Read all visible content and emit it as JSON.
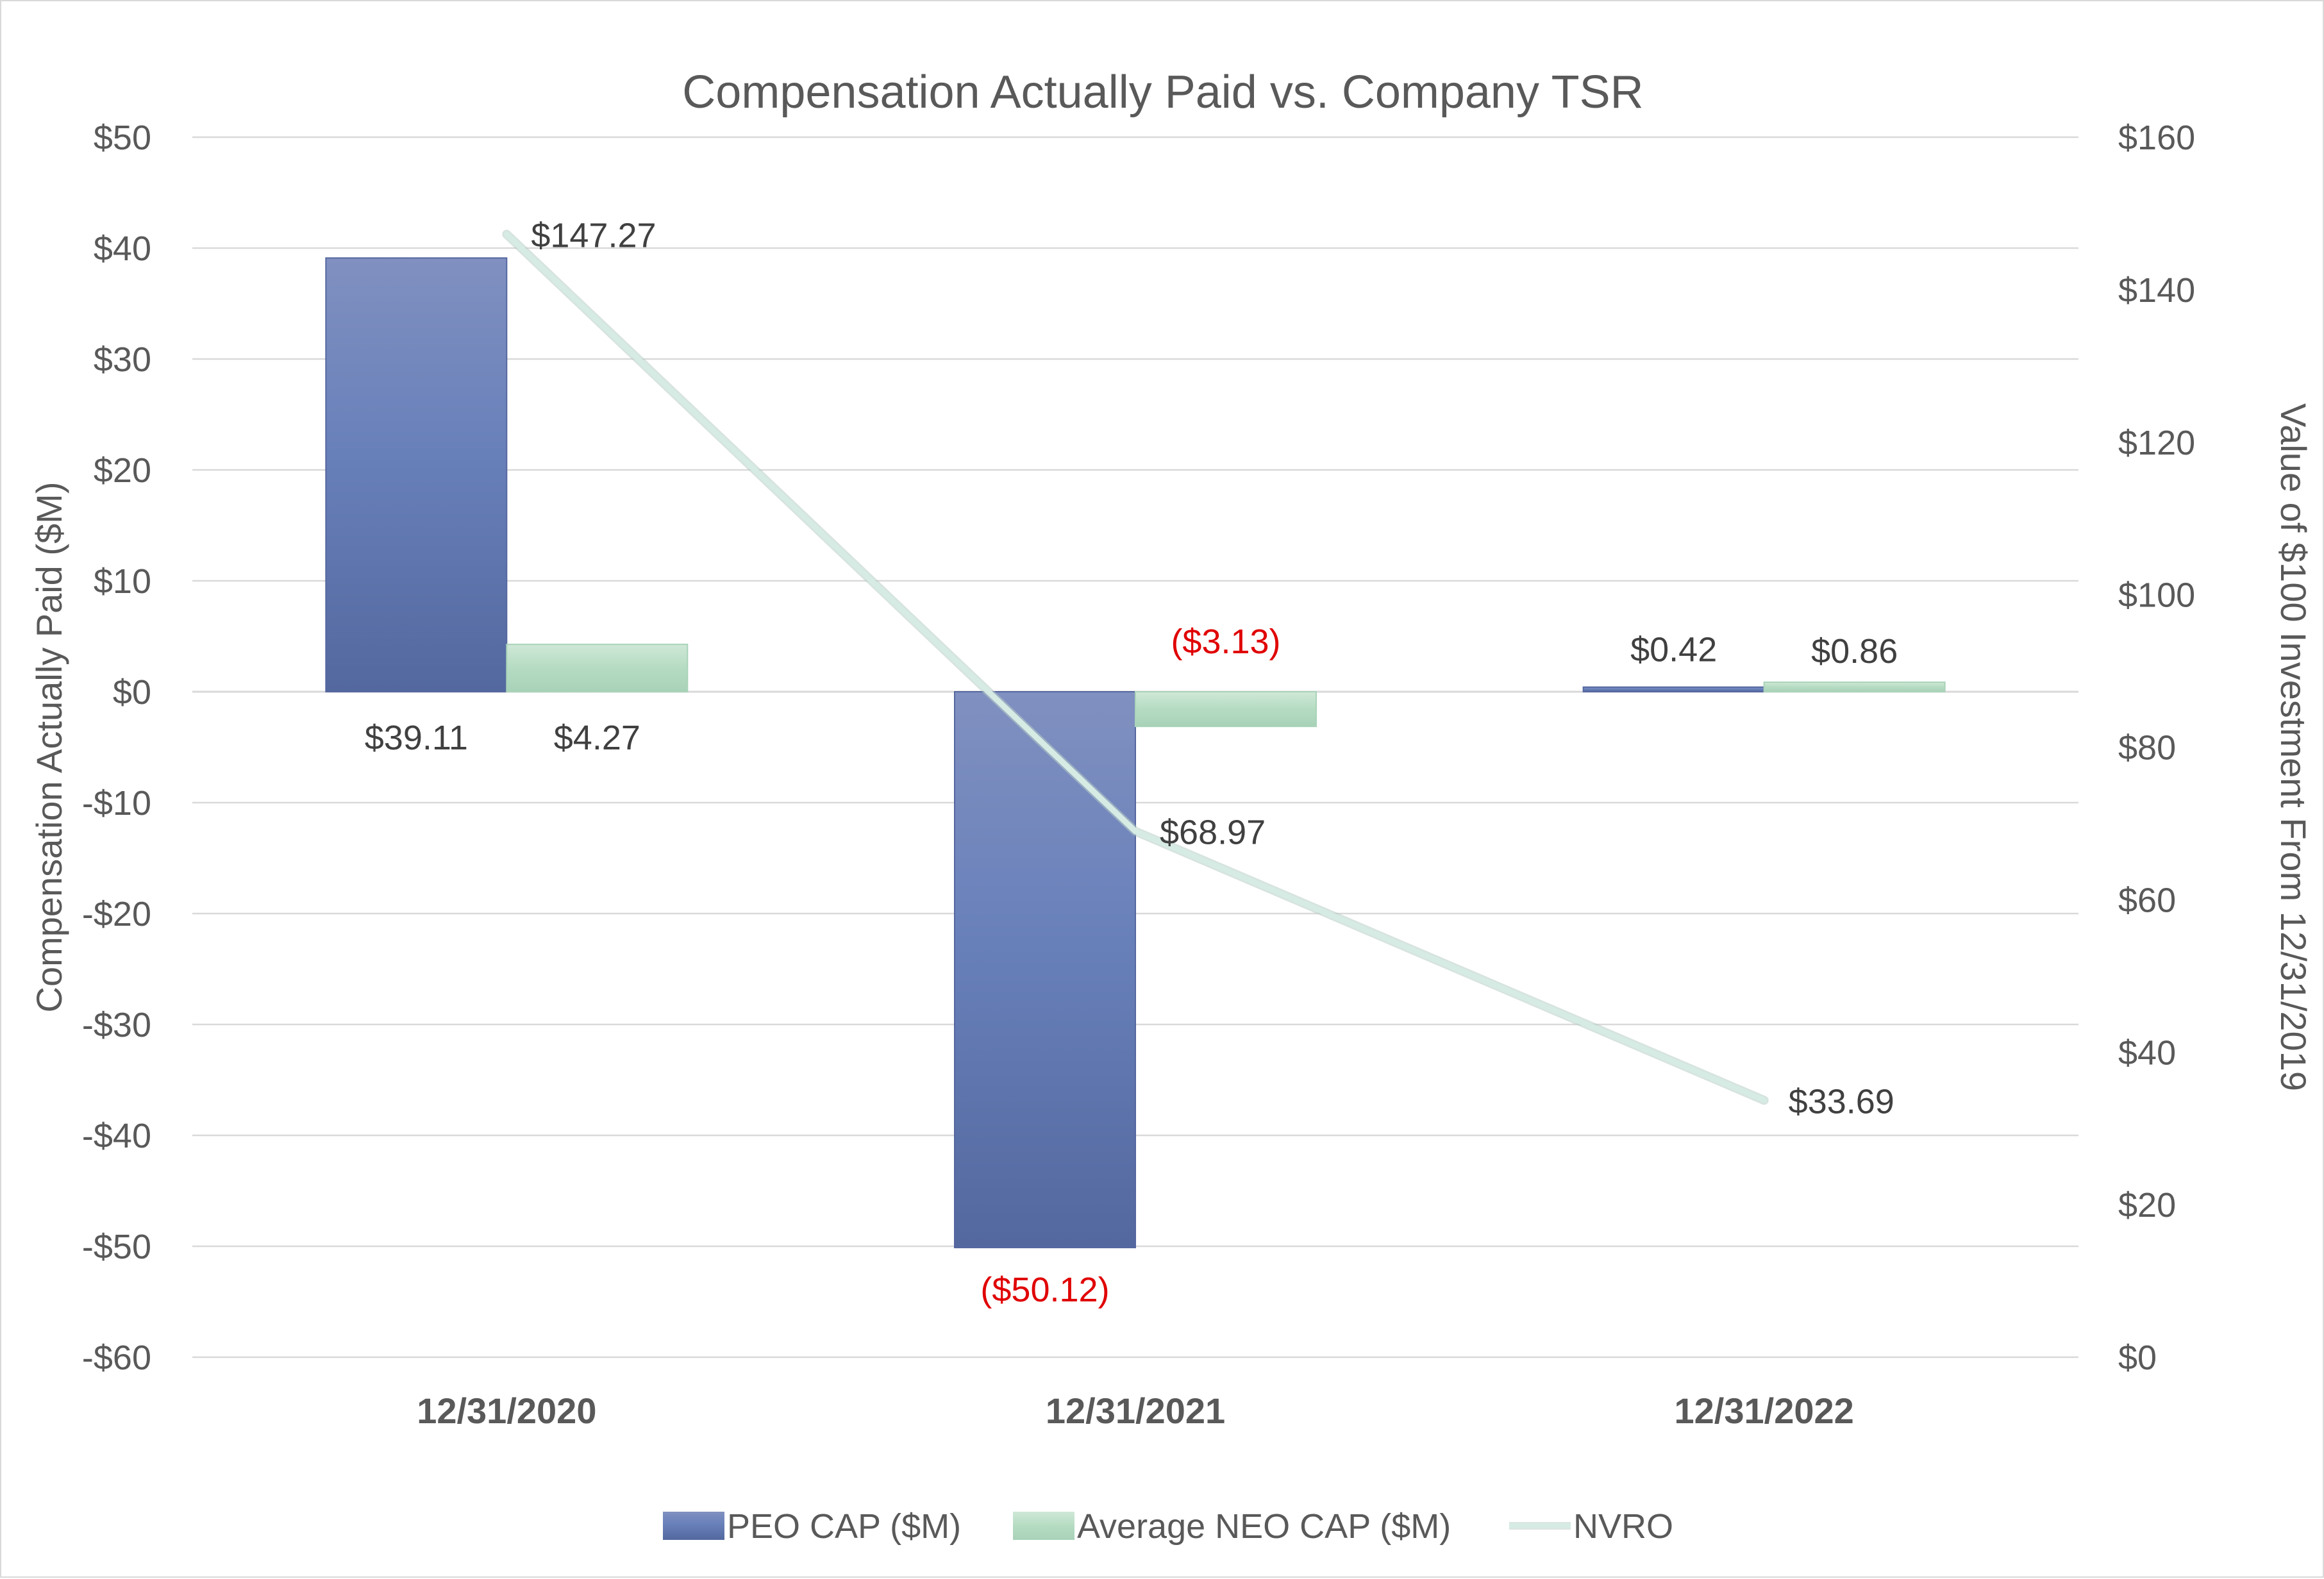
{
  "chart_data": {
    "type": "bar",
    "title": "Compensation Actually Paid vs. Company TSR",
    "categories": [
      "12/31/2020",
      "12/31/2021",
      "12/31/2022"
    ],
    "ylabel": "Compensation Actually Paid ($M)",
    "y2label": "Value of $100 Investment From 12/31/2019",
    "ylim": [
      -60,
      50
    ],
    "y_ticks": [
      50,
      40,
      30,
      20,
      10,
      0,
      -10,
      -20,
      -30,
      -40,
      -50,
      -60
    ],
    "y_tick_labels": [
      "$50",
      "$40",
      "$30",
      "$20",
      "$10",
      "$0",
      "-$10",
      "-$20",
      "-$30",
      "-$40",
      "-$50",
      "-$60"
    ],
    "y2lim": [
      0,
      160
    ],
    "y2_ticks": [
      160,
      140,
      120,
      100,
      80,
      60,
      40,
      20,
      0
    ],
    "y2_tick_labels": [
      "$160",
      "$140",
      "$120",
      "$100",
      "$80",
      "$60",
      "$40",
      "$20",
      "$0"
    ],
    "grid": true,
    "legend_position": "bottom",
    "series": [
      {
        "name": "PEO CAP ($M)",
        "type": "bar",
        "axis": "left",
        "color": "#5a6fa8",
        "values": [
          39.11,
          -50.12,
          0.42
        ],
        "labels": [
          "$39.11",
          "($50.12)",
          "$0.42"
        ],
        "label_colors": [
          "#404040",
          "#e00000",
          "#404040"
        ]
      },
      {
        "name": "Average NEO CAP ($M)",
        "type": "bar",
        "axis": "left",
        "color": "#b9dcc5",
        "values": [
          4.27,
          -3.13,
          0.86
        ],
        "labels": [
          "$4.27",
          "($3.13)",
          "$0.86"
        ],
        "label_colors": [
          "#404040",
          "#e00000",
          "#404040"
        ]
      },
      {
        "name": "NVRO",
        "type": "line",
        "axis": "right",
        "color": "#d5ebe4",
        "values": [
          147.27,
          68.97,
          33.69
        ],
        "labels": [
          "$147.27",
          "$68.97",
          "$33.69"
        ],
        "label_colors": [
          "#404040",
          "#404040",
          "#404040"
        ]
      }
    ]
  }
}
